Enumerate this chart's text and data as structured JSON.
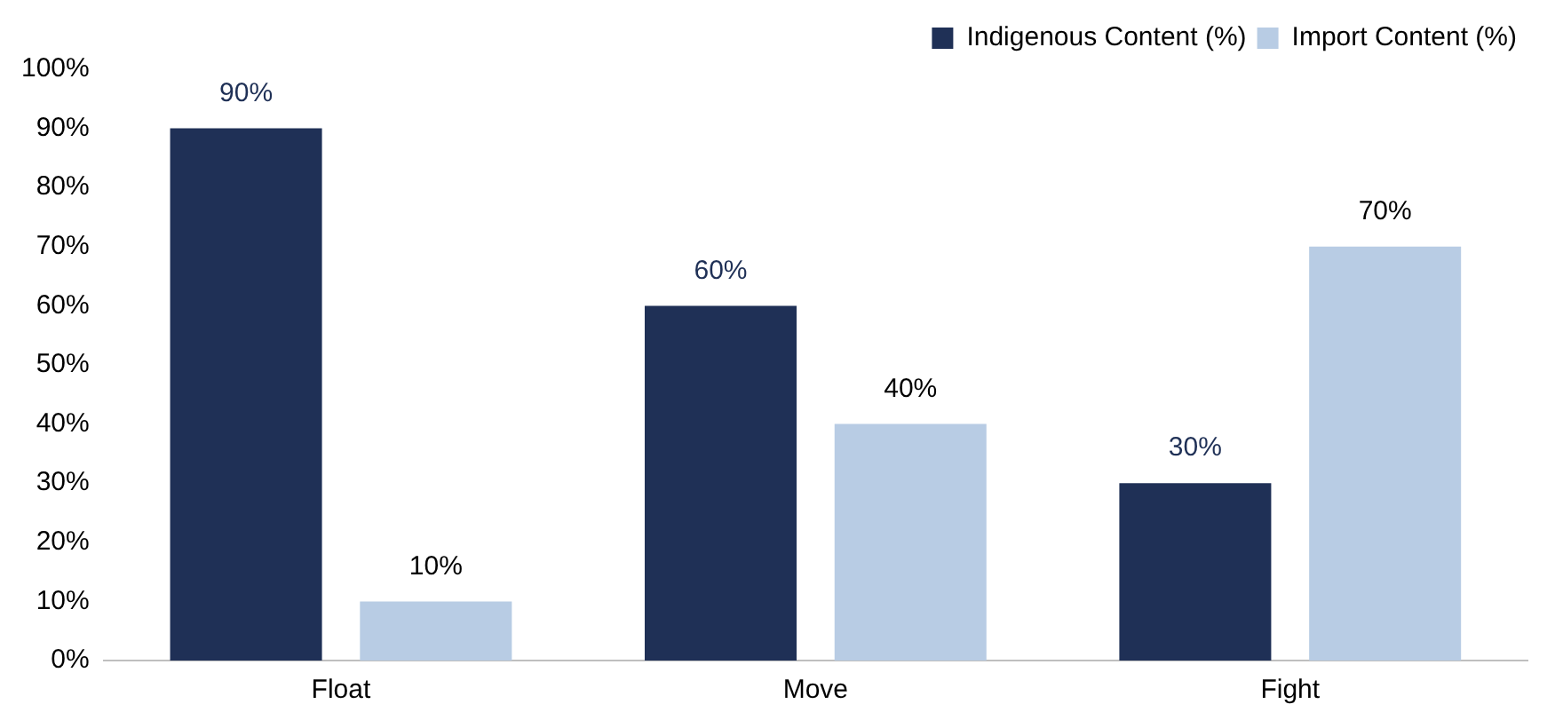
{
  "chart_data": {
    "type": "bar",
    "categories": [
      "Float",
      "Move",
      "Fight"
    ],
    "series": [
      {
        "name": "Indigenous Content (%)",
        "color": "#1f3056",
        "values": [
          90,
          60,
          30
        ],
        "value_labels": [
          "90%",
          "60%",
          "30%"
        ]
      },
      {
        "name": "Import Content (%)",
        "color": "#b8cce4",
        "values": [
          10,
          40,
          70
        ],
        "value_labels": [
          "10%",
          "40%",
          "70%"
        ]
      }
    ],
    "ylim": [
      0,
      100
    ],
    "yticks": [
      {
        "value": 0,
        "label": "0%"
      },
      {
        "value": 10,
        "label": "10%"
      },
      {
        "value": 20,
        "label": "20%"
      },
      {
        "value": 30,
        "label": "30%"
      },
      {
        "value": 40,
        "label": "40%"
      },
      {
        "value": 50,
        "label": "50%"
      },
      {
        "value": 60,
        "label": "60%"
      },
      {
        "value": 70,
        "label": "70%"
      },
      {
        "value": 80,
        "label": "80%"
      },
      {
        "value": 90,
        "label": "90%"
      },
      {
        "value": 100,
        "label": "100%"
      }
    ],
    "grid": false,
    "legend": "top right"
  }
}
